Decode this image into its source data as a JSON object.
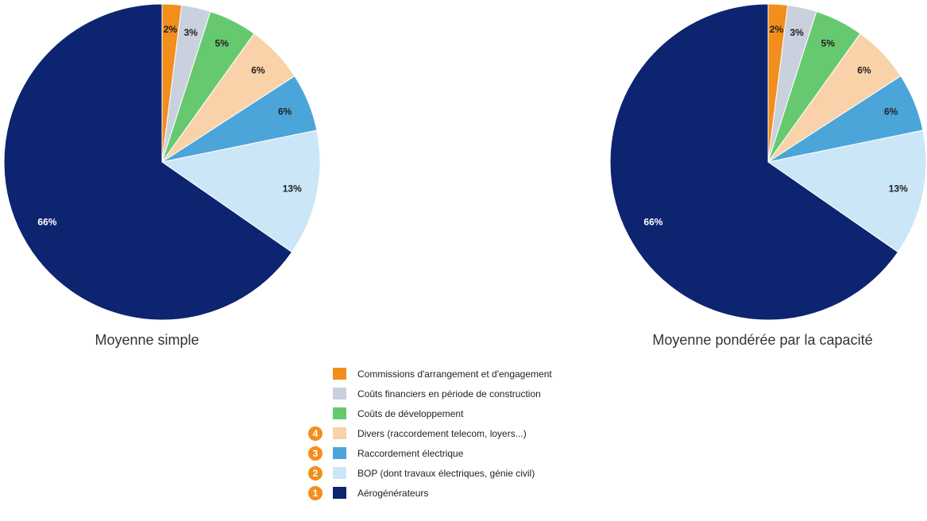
{
  "chart_data": [
    {
      "type": "pie",
      "title": "Moyenne simple",
      "slices": [
        {
          "label": "Commissions d'arrangement et d'engagement",
          "value": 2,
          "display": "2%",
          "color": "#f28e1c",
          "label_color": "#222222"
        },
        {
          "label": "Coûts financiers en période de construction",
          "value": 3,
          "display": "3%",
          "color": "#c9d0de",
          "label_color": "#222222"
        },
        {
          "label": "Coûts de développement",
          "value": 5,
          "display": "5%",
          "color": "#67c96f",
          "label_color": "#222222"
        },
        {
          "label": "Divers (raccordement telecom, loyers...)",
          "value": 6,
          "display": "6%",
          "color": "#f9d2a9",
          "label_color": "#222222"
        },
        {
          "label": "Raccordement électrique",
          "value": 6,
          "display": "6%",
          "color": "#4ca5d9",
          "label_color": "#222222"
        },
        {
          "label": "BOP (dont travaux électriques, génie civil)",
          "value": 13,
          "display": "13%",
          "color": "#cbe6f7",
          "label_color": "#222222"
        },
        {
          "label": "Aérogénérateurs",
          "value": 66,
          "display": "66%",
          "color": "#0d2470",
          "label_color": "#ffffff"
        }
      ]
    },
    {
      "type": "pie",
      "title": "Moyenne pondérée par la capacité",
      "slices": [
        {
          "label": "Commissions d'arrangement et d'engagement",
          "value": 2,
          "display": "2%",
          "color": "#f28e1c",
          "label_color": "#222222"
        },
        {
          "label": "Coûts financiers en période de construction",
          "value": 3,
          "display": "3%",
          "color": "#c9d0de",
          "label_color": "#222222"
        },
        {
          "label": "Coûts de développement",
          "value": 5,
          "display": "5%",
          "color": "#67c96f",
          "label_color": "#222222"
        },
        {
          "label": "Divers (raccordement telecom, loyers...)",
          "value": 6,
          "display": "6%",
          "color": "#f9d2a9",
          "label_color": "#222222"
        },
        {
          "label": "Raccordement électrique",
          "value": 6,
          "display": "6%",
          "color": "#4ca5d9",
          "label_color": "#222222"
        },
        {
          "label": "BOP (dont travaux électriques, génie civil)",
          "value": 13,
          "display": "13%",
          "color": "#cbe6f7",
          "label_color": "#222222"
        },
        {
          "label": "Aérogénérateurs",
          "value": 66,
          "display": "66%",
          "color": "#0d2470",
          "label_color": "#ffffff"
        }
      ]
    }
  ],
  "legend": {
    "placement": "bottom-center",
    "items": [
      {
        "number": "",
        "label": "Commissions d'arrangement et d'engagement",
        "color": "#f28e1c"
      },
      {
        "number": "",
        "label": "Coûts financiers en période de construction",
        "color": "#c9d0de"
      },
      {
        "number": "",
        "label": "Coûts de développement",
        "color": "#67c96f"
      },
      {
        "number": "4",
        "label": "Divers (raccordement telecom, loyers...)",
        "color": "#f9d2a9"
      },
      {
        "number": "3",
        "label": "Raccordement électrique",
        "color": "#4ca5d9"
      },
      {
        "number": "2",
        "label": "BOP (dont travaux électriques, génie civil)",
        "color": "#cbe6f7"
      },
      {
        "number": "1",
        "label": "Aérogénérateurs",
        "color": "#0d2470"
      }
    ]
  }
}
